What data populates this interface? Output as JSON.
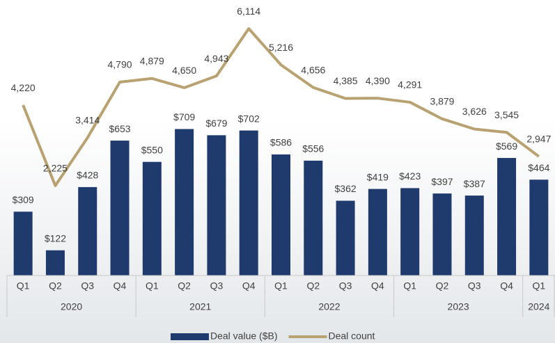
{
  "chart_data": {
    "type": "bar-line",
    "categories": [
      "Q1",
      "Q2",
      "Q3",
      "Q4",
      "Q1",
      "Q2",
      "Q3",
      "Q4",
      "Q1",
      "Q2",
      "Q3",
      "Q4",
      "Q1",
      "Q2",
      "Q3",
      "Q4",
      "Q1"
    ],
    "x_groups": [
      {
        "name": "2020",
        "count": 4
      },
      {
        "name": "2021",
        "count": 4
      },
      {
        "name": "2022",
        "count": 4
      },
      {
        "name": "2023",
        "count": 4
      },
      {
        "name": "2024",
        "count": 1
      }
    ],
    "ylim": [
      0,
      1300
    ],
    "y2lim": [
      0,
      6650
    ],
    "legend": "bottom",
    "series": [
      {
        "name": "Deal value ($B)",
        "type": "bar",
        "color": "#1f3a6c",
        "values": [
          309,
          122,
          428,
          653,
          550,
          709,
          679,
          702,
          586,
          556,
          362,
          419,
          423,
          397,
          387,
          569,
          464
        ],
        "value_labels": [
          "$309",
          "$122",
          "$428",
          "$653",
          "$550",
          "$709",
          "$679",
          "$702",
          "$586",
          "$556",
          "$362",
          "$419",
          "$423",
          "$397",
          "$387",
          "$569",
          "$464"
        ]
      },
      {
        "name": "Deal count",
        "type": "line",
        "axis": "y2",
        "color": "#b8a272",
        "values": [
          4220,
          2225,
          3414,
          4790,
          4879,
          4650,
          4943,
          6114,
          5216,
          4656,
          4385,
          4390,
          4291,
          3879,
          3626,
          3545,
          2947
        ],
        "value_labels": [
          "4,220",
          "2,225",
          "3,414",
          "4,790",
          "4,879",
          "4,650",
          "4,943",
          "6,114",
          "5,216",
          "4,656",
          "4,385",
          "4,390",
          "4,291",
          "3,879",
          "3,626",
          "3,545",
          "2,947"
        ]
      }
    ]
  }
}
